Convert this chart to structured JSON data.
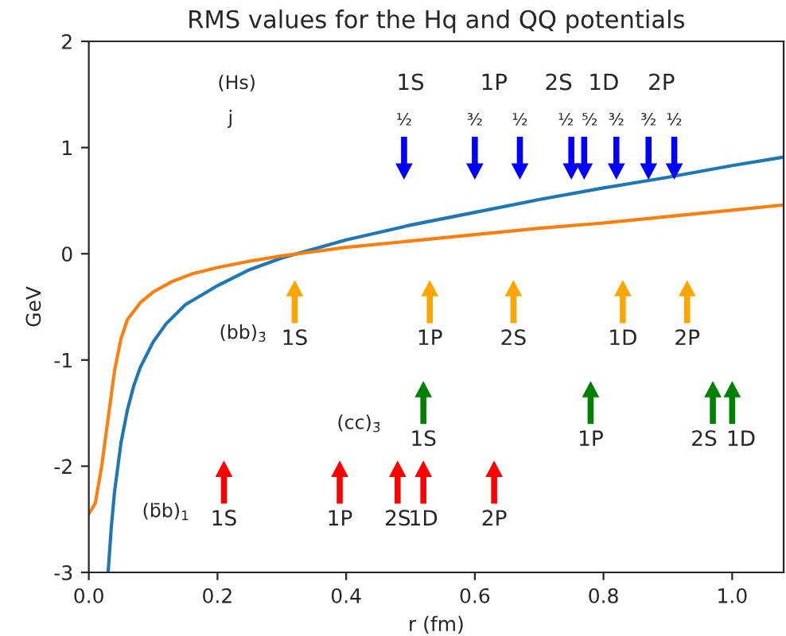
{
  "chart_data": {
    "type": "line",
    "title": "RMS values for the Hq and QQ potentials",
    "xlabel": "r (fm)",
    "ylabel": "GeV",
    "xlim": [
      0,
      1.08
    ],
    "xticks": [
      {
        "value": 0,
        "label": "0.0"
      },
      0.2,
      0.4,
      0.6,
      0.8,
      {
        "value": 1,
        "label": "1.0"
      }
    ],
    "ylim": [
      -3,
      2
    ],
    "yticks": [
      -3,
      -2,
      -1,
      0,
      1,
      2
    ],
    "grid": false,
    "legend": false,
    "series": [
      {
        "color": "#1f77b4",
        "x": [
          0.03,
          0.035,
          0.04,
          0.05,
          0.06,
          0.07,
          0.08,
          0.1,
          0.12,
          0.15,
          0.2,
          0.25,
          0.3,
          0.4,
          0.5,
          0.6,
          0.7,
          0.8,
          0.9,
          1.0,
          1.08
        ],
        "values": [
          -3.0,
          -2.57,
          -2.24,
          -1.78,
          -1.47,
          -1.24,
          -1.07,
          -0.83,
          -0.66,
          -0.48,
          -0.3,
          -0.15,
          -0.04,
          0.13,
          0.27,
          0.39,
          0.51,
          0.62,
          0.72,
          0.83,
          0.91
        ]
      },
      {
        "color": "#ff7f0e",
        "x": [
          0,
          0.01,
          0.02,
          0.03,
          0.04,
          0.05,
          0.06,
          0.08,
          0.1,
          0.13,
          0.16,
          0.2,
          0.25,
          0.3,
          0.35,
          0.4,
          0.5,
          0.6,
          0.7,
          0.8,
          0.9,
          1.0,
          1.08
        ],
        "values": [
          -2.45,
          -2.35,
          -2.0,
          -1.55,
          -1.1,
          -0.8,
          -0.62,
          -0.46,
          -0.36,
          -0.26,
          -0.19,
          -0.13,
          -0.07,
          -0.02,
          0.02,
          0.06,
          0.12,
          0.18,
          0.24,
          0.29,
          0.35,
          0.41,
          0.46
        ]
      },
      {
        "type": "scatter",
        "marker": "triangle_down",
        "color": "#0000ff",
        "x": [
          0.49,
          0.6,
          0.67,
          0.75,
          0.77,
          0.82,
          0.87,
          0.91
        ],
        "values": [
          0.9,
          0.9,
          0.9,
          0.9,
          0.9,
          0.9,
          0.9,
          0.9
        ]
      },
      {
        "type": "scatter",
        "marker": "triangle",
        "color": "#ffa500",
        "x": [
          0.32,
          0.53,
          0.66,
          0.83,
          0.93
        ],
        "values": [
          -0.45,
          -0.45,
          -0.45,
          -0.45,
          -0.45
        ]
      },
      {
        "type": "scatter",
        "marker": "triangle",
        "color": "#008000",
        "x": [
          0.52,
          0.78,
          0.97,
          1.0
        ],
        "values": [
          -1.4,
          -1.4,
          -1.4,
          -1.4
        ]
      },
      {
        "type": "scatter",
        "marker": "triangle",
        "color": "#ff0000",
        "x": [
          0.21,
          0.39,
          0.48,
          0.52,
          0.63
        ],
        "values": [
          -2.15,
          -2.15,
          -2.15,
          -2.15,
          -2.15
        ]
      }
    ],
    "annotations": [
      "(Hs)",
      "j",
      "1S",
      "1P",
      "2S",
      "1D",
      "2P",
      "(bb)$_{3̄}$",
      "(cc)$_{3̄}$",
      "(b̄b)$_{1}$",
      {
        "text": "½",
        "x": 0.49,
        "y": 0.9
      },
      {
        "text": "³⁄₂",
        "x": 0.6,
        "y": 0.9
      },
      {
        "text": "½",
        "x": 0.67,
        "y": 0.9
      },
      {
        "text": "½",
        "x": 0.75,
        "y": 0.9
      },
      {
        "text": "⁵⁄₂",
        "x": 0.77,
        "y": 0.9
      },
      {
        "text": "³⁄₂",
        "x": 0.82,
        "y": 0.9
      },
      {
        "text": "³⁄₂",
        "x": 0.87,
        "y": 0.9
      },
      {
        "text": "½",
        "x": 0.91,
        "y": 0.9
      },
      {
        "text": "1S",
        "x": 0.32,
        "y": -0.45
      },
      {
        "text": "1P",
        "x": 0.53,
        "y": -0.45
      },
      {
        "text": "2S",
        "x": 0.66,
        "y": -0.45
      },
      {
        "text": "1D",
        "x": 0.83,
        "y": -0.45
      },
      {
        "text": "2P",
        "x": 0.93,
        "y": -0.45
      },
      {
        "text": "1S",
        "x": 0.52,
        "y": -1.4
      },
      {
        "text": "1P",
        "x": 0.78,
        "y": -1.4
      },
      {
        "text": "2S",
        "x": 0.97,
        "y": -1.4
      },
      {
        "text": "1D",
        "x": 1.0,
        "y": -1.4
      },
      {
        "text": "1S",
        "x": 0.21,
        "y": -2.15
      },
      {
        "text": "1P",
        "x": 0.39,
        "y": -2.15
      },
      {
        "text": "2S",
        "x": 0.48,
        "y": -2.15
      },
      {
        "text": "1D",
        "x": 0.52,
        "y": -2.15
      },
      {
        "text": "2P",
        "x": 0.63,
        "y": -2.15
      }
    ]
  }
}
